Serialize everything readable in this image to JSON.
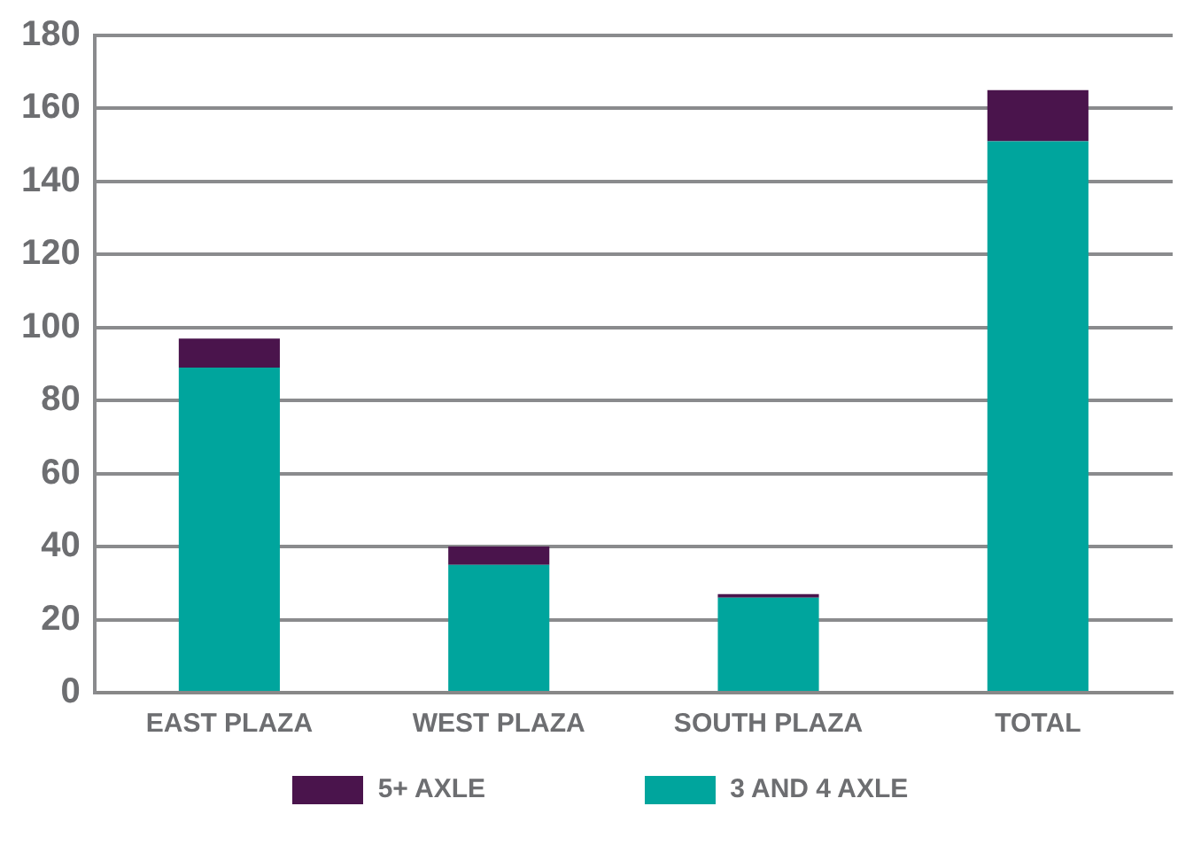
{
  "chart_data": {
    "type": "bar",
    "stacked": true,
    "categories": [
      "EAST PLAZA",
      "WEST PLAZA",
      "SOUTH PLAZA",
      "TOTAL"
    ],
    "series": [
      {
        "name": "3 AND 4 AXLE",
        "color": "#00a59d",
        "values": [
          89,
          35,
          26,
          151
        ]
      },
      {
        "name": "5+ AXLE",
        "color": "#4a144c",
        "values": [
          8,
          5,
          1,
          14
        ]
      }
    ],
    "ylim": [
      0,
      180
    ],
    "yticks": [
      0,
      20,
      40,
      60,
      80,
      100,
      120,
      140,
      160,
      180
    ],
    "grid": "y",
    "legend": "bottom"
  }
}
